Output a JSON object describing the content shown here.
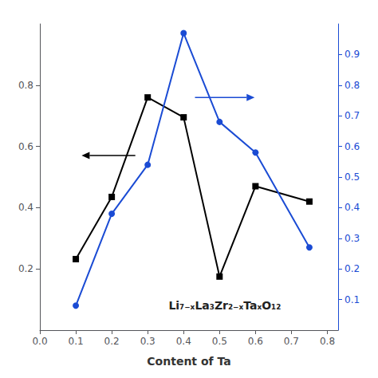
{
  "chart_data": {
    "type": "line",
    "xlabel": "Content of Ta",
    "annotation": "Li₇₋ₓLa₃Zr₂₋ₓTaₓO₁₂",
    "x": [
      0.1,
      0.2,
      0.3,
      0.4,
      0.5,
      0.6,
      0.75
    ],
    "series": [
      {
        "color": "#000000",
        "marker": "square",
        "values": [
          0.232,
          0.435,
          0.76,
          0.695,
          0.175,
          0.47,
          0.42
        ]
      },
      {
        "color": "#1a4bd4",
        "marker": "circle",
        "axis": "y2",
        "values": [
          0.08,
          0.38,
          0.54,
          0.97,
          0.68,
          0.58,
          0.27
        ]
      }
    ],
    "xlim": [
      0.0,
      0.83
    ],
    "xticks": [
      {
        "value": 0.0,
        "label": "0.0"
      },
      0.1,
      0.2,
      0.3,
      0.4,
      0.5,
      0.6,
      0.7,
      0.8
    ],
    "ylim": [
      0.0,
      1.0
    ],
    "yticks": [
      0.2,
      0.4,
      0.6,
      0.8
    ],
    "y2lim": [
      0.0,
      1.0
    ],
    "y2ticks": [
      0.1,
      0.2,
      0.3,
      0.4,
      0.5,
      0.6,
      0.7,
      0.8,
      0.9
    ],
    "grid": false
  }
}
